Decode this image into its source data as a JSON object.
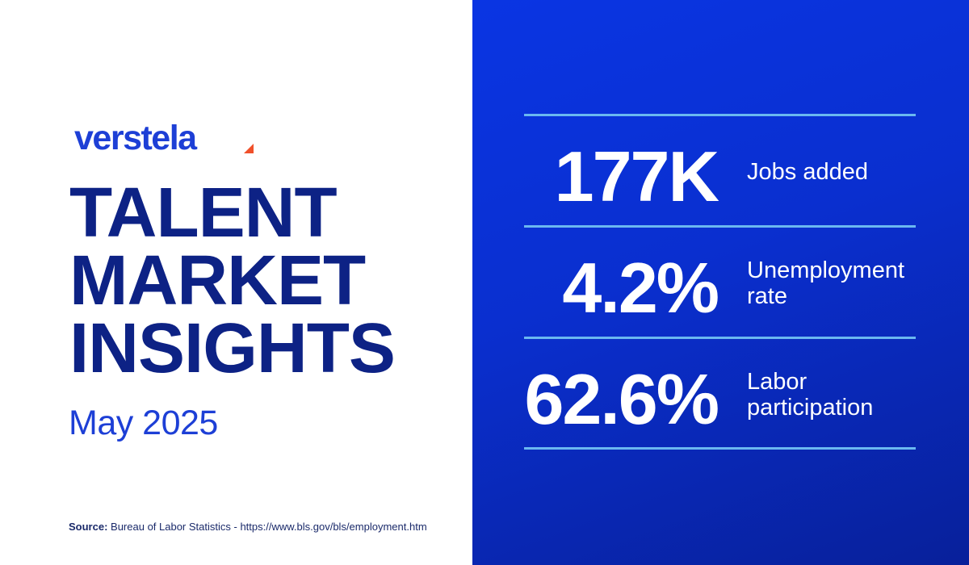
{
  "brand": {
    "logo_text": "verstela",
    "logo_color": "#1d3fd6",
    "logo_mark_color": "#f0502a"
  },
  "headline": {
    "line1": "TALENT",
    "line2": "MARKET",
    "line3": "INSIGHTS",
    "color": "#0d2285"
  },
  "date": "May 2025",
  "source": {
    "label": "Source:",
    "text": "Bureau of Labor Statistics - https://www.bls.gov/bls/employment.htm"
  },
  "stats": [
    {
      "value": "177K",
      "label": "Jobs added"
    },
    {
      "value": "4.2%",
      "label": "Unemployment rate"
    },
    {
      "value": "62.6%",
      "label": "Labor participation"
    }
  ],
  "colors": {
    "panel_blue": "#0a35e3",
    "panel_blue_dark": "#08209a",
    "rule": "#6bb8f0",
    "accent_orange": "#f0502a"
  }
}
